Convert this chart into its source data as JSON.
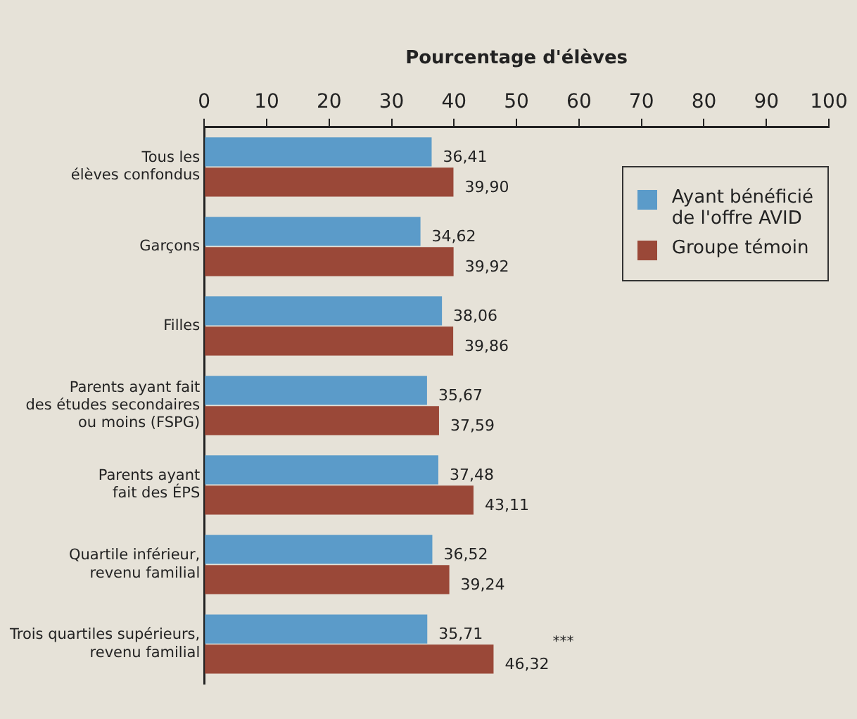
{
  "chart_data": {
    "type": "bar",
    "orientation": "horizontal",
    "xlabel": "Pourcentage d'élèves",
    "categories": [
      "Tous les\nélèves confondus",
      "Garçons",
      "Filles",
      "Parents ayant fait\ndes études secondaires\nou moins (FSPG)",
      "Parents ayant\nfait des ÉPS",
      "Quartile inférieur,\nrevenu familial",
      "Trois quartiles supérieurs,\nrevenu familial"
    ],
    "series": [
      {
        "name": "Ayant bénéficié\nde l'offre AVID",
        "color": "#5b9bc9",
        "values": [
          36.41,
          34.62,
          38.06,
          35.67,
          37.48,
          36.52,
          35.71
        ],
        "value_labels": [
          "36,41",
          "34,62",
          "38,06",
          "35,67",
          "37,48",
          "36,52",
          "35,71"
        ]
      },
      {
        "name": "Groupe témoin",
        "color": "#9a4838",
        "values": [
          39.9,
          39.92,
          39.86,
          37.59,
          43.11,
          39.24,
          46.32
        ],
        "value_labels": [
          "39,90",
          "39,92",
          "39,86",
          "37,59",
          "43,11",
          "39,24",
          "46,32"
        ]
      }
    ],
    "xlim": [
      0,
      100
    ],
    "xticks": [
      0,
      10,
      20,
      30,
      40,
      50,
      60,
      70,
      80,
      90,
      100
    ],
    "grid": false,
    "legend": "top right",
    "annotations": [
      "***"
    ]
  }
}
